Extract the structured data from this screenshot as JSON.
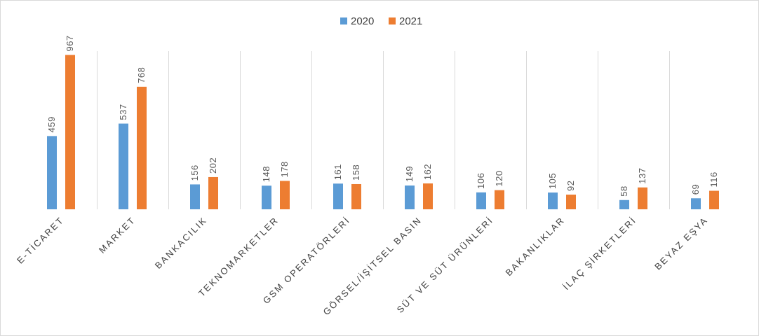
{
  "chart_data": {
    "type": "bar",
    "categories": [
      "E-TİCARET",
      "MARKET",
      "BANKACILIK",
      "TEKNOMARKETLER",
      "GSM OPERATÖRLERİ",
      "GÖRSEL/İŞİTSEL BASIN",
      "SÜT VE SÜT ÜRÜNLERİ",
      "BAKANLIKLAR",
      "İLAÇ ŞİRKETLERİ",
      "BEYAZ EŞYA"
    ],
    "series": [
      {
        "name": "2020",
        "color": "#5b9bd5",
        "values": [
          459,
          537,
          156,
          148,
          161,
          149,
          106,
          105,
          58,
          69
        ]
      },
      {
        "name": "2021",
        "color": "#ed7d31",
        "values": [
          967,
          768,
          202,
          178,
          158,
          162,
          120,
          92,
          137,
          116
        ]
      }
    ],
    "ylim": [
      0,
      1000
    ],
    "grid": "vertical category separators",
    "legend_position": "top-center",
    "data_labels": true
  }
}
